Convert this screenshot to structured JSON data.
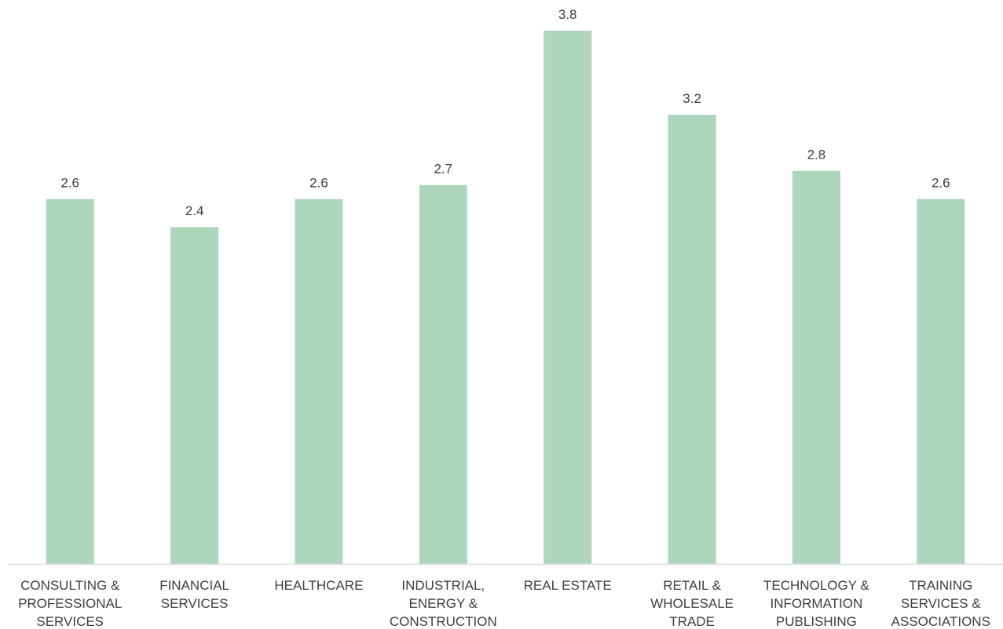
{
  "chart_data": {
    "type": "bar",
    "categories": [
      [
        "CONSULTING &",
        "PROFESSIONAL",
        "SERVICES"
      ],
      [
        "FINANCIAL",
        "SERVICES"
      ],
      [
        "HEALTHCARE"
      ],
      [
        "INDUSTRIAL,",
        "ENERGY &",
        "CONSTRUCTION"
      ],
      [
        "REAL ESTATE"
      ],
      [
        "RETAIL &",
        "WHOLESALE",
        "TRADE"
      ],
      [
        "TECHNOLOGY &",
        "INFORMATION",
        "PUBLISHING"
      ],
      [
        "TRAINING",
        "SERVICES &",
        "ASSOCIATIONS"
      ]
    ],
    "values": [
      2.6,
      2.4,
      2.6,
      2.7,
      3.8,
      3.2,
      2.8,
      2.6
    ],
    "value_labels": [
      "2.6",
      "2.4",
      "2.6",
      "2.7",
      "3.8",
      "3.2",
      "2.8",
      "2.6"
    ],
    "ylim": [
      0,
      3.8
    ],
    "grid": false,
    "legend": "none",
    "bar_color": "#aed6bc",
    "axis_color": "#d9d9d9",
    "text_color": "#404040"
  }
}
